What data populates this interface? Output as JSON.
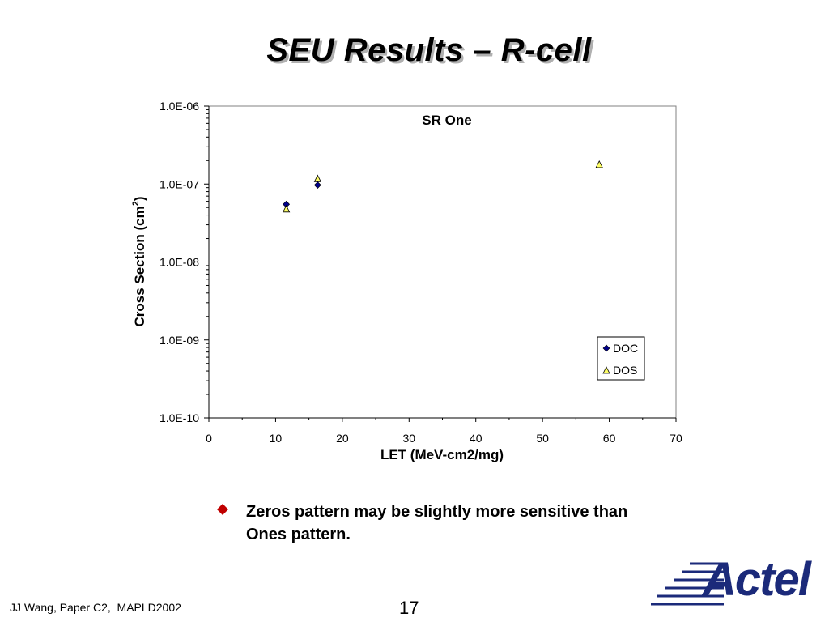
{
  "slide": {
    "title": "SEU Results – R-cell",
    "bullet": "Zeros pattern may be slightly more sensitive than Ones pattern.",
    "footer_left": "JJ Wang, Paper C2,  MAPLD2002",
    "page_number": "17",
    "logo_text": "Actel",
    "bullet_color": "#c00000",
    "logo_color": "#1b2a7a"
  },
  "chart_data": {
    "type": "scatter",
    "title": "SR One",
    "xlabel": "LET (MeV-cm2/mg)",
    "ylabel": "Cross Section (cm",
    "ylabel_superscript": "2",
    "ylabel_close": ")",
    "xlim": [
      0,
      70
    ],
    "ylim": [
      1e-10,
      1e-06
    ],
    "yscale": "log",
    "x_ticks": [
      "0",
      "10",
      "20",
      "30",
      "40",
      "50",
      "60",
      "70"
    ],
    "y_ticks": [
      "1.0E-06",
      "1.0E-07",
      "1.0E-08",
      "1.0E-09",
      "1.0E-10"
    ],
    "grid": false,
    "legend_position": "bottom-right",
    "series": [
      {
        "name": "DOC",
        "marker": "diamond",
        "color": "#00008b",
        "points": [
          [
            11.6,
            5.5e-08
          ],
          [
            16.3,
            9.7e-08
          ]
        ]
      },
      {
        "name": "DOS",
        "marker": "triangle",
        "color": "#ffff66",
        "points": [
          [
            11.6,
            4.7e-08
          ],
          [
            16.3,
            1.15e-07
          ],
          [
            58.5,
            1.75e-07
          ]
        ]
      }
    ]
  }
}
